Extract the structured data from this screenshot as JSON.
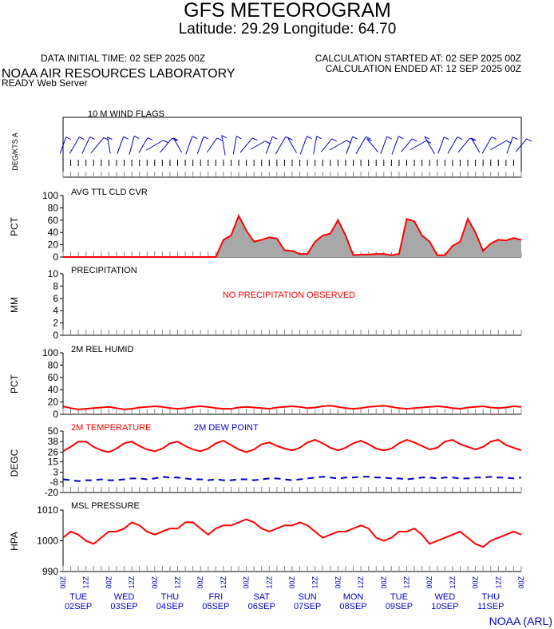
{
  "header": {
    "title": "GFS METEOROGRAM",
    "subtitle": "Latitude: 29.29 Longitude:  64.70",
    "data_initial_time": "DATA INITIAL TIME: 02 SEP 2025 00Z",
    "calc_started": "CALCULATION STARTED AT: 02 SEP 2025 00Z",
    "calc_ended": "CALCULATION ENDED AT: 12 SEP 2025 00Z",
    "lab": "NOAA AIR RESOURCES LABORATORY",
    "server": "READY Web Server",
    "credit": "NOAA (ARL)"
  },
  "colors": {
    "red": "#ff0000",
    "blue": "#0000cc",
    "fill": "#a8a8a8",
    "black": "#000000"
  },
  "x_axis": {
    "hour_labels": [
      "00Z",
      "12Z",
      "00Z",
      "12Z",
      "00Z",
      "12Z",
      "00Z",
      "12Z",
      "00Z",
      "12Z",
      "00Z",
      "12Z",
      "00Z",
      "12Z",
      "00Z",
      "12Z",
      "00Z",
      "12Z",
      "00Z",
      "12Z",
      "00Z"
    ],
    "days": [
      {
        "dow": "TUE",
        "date": "02SEP"
      },
      {
        "dow": "WED",
        "date": "03SEP"
      },
      {
        "dow": "THU",
        "date": "04SEP"
      },
      {
        "dow": "FRI",
        "date": "05SEP"
      },
      {
        "dow": "SAT",
        "date": "06SEP"
      },
      {
        "dow": "SUN",
        "date": "07SEP"
      },
      {
        "dow": "MON",
        "date": "08SEP"
      },
      {
        "dow": "TUE",
        "date": "09SEP"
      },
      {
        "dow": "WED",
        "date": "10SEP"
      },
      {
        "dow": "THU",
        "date": "11SEP"
      }
    ]
  },
  "chart_data": [
    {
      "type": "wind_barbs",
      "title": "10 M  WIND FLAGS",
      "ylabel": "DEG/KTS  A",
      "x_hours": [
        0,
        6,
        12,
        18,
        24,
        30,
        36,
        42,
        48,
        54,
        60,
        66,
        72,
        78,
        84,
        90,
        96,
        102,
        108,
        114,
        120,
        126,
        132,
        138,
        144,
        150,
        156,
        162,
        168,
        174,
        180,
        186,
        192,
        198,
        204,
        210,
        216,
        222,
        228,
        234,
        240
      ],
      "direction_deg": [
        20,
        30,
        25,
        40,
        350,
        20,
        15,
        30,
        60,
        40,
        330,
        20,
        20,
        35,
        350,
        10,
        40,
        60,
        20,
        30,
        330,
        20,
        10,
        40,
        60,
        20,
        30,
        320,
        20,
        20,
        40,
        60,
        330,
        20,
        30,
        40,
        330,
        30,
        60,
        20,
        40
      ],
      "speed_kts": [
        4,
        6,
        5,
        7,
        3,
        5,
        6,
        4,
        7,
        5,
        3,
        6,
        5,
        4,
        7,
        5,
        6,
        3,
        5,
        7,
        4,
        6,
        5,
        3,
        6,
        5,
        7,
        4,
        5,
        6,
        3,
        5,
        7,
        4,
        6,
        5,
        3,
        6,
        5,
        4,
        3
      ]
    },
    {
      "type": "area",
      "title": "AVG TTL CLD CVR",
      "ylabel": "PCT",
      "ylim": [
        0,
        100
      ],
      "yticks": [
        0,
        20,
        40,
        60,
        80,
        100
      ],
      "x_hours": [
        0,
        120,
        126,
        132,
        138,
        144,
        150,
        156,
        162,
        168,
        174,
        180,
        186,
        192,
        198,
        204,
        210,
        216,
        222,
        228,
        234,
        240,
        246,
        252,
        258,
        264,
        270,
        276,
        282,
        288,
        294,
        300,
        306,
        312,
        318,
        324,
        330,
        336,
        342,
        348,
        354,
        360
      ],
      "values": [
        0,
        0,
        28,
        35,
        67,
        43,
        25,
        28,
        32,
        30,
        11,
        10,
        5,
        5,
        25,
        35,
        38,
        60,
        35,
        3,
        4,
        4,
        5,
        5,
        3,
        5,
        62,
        58,
        35,
        25,
        3,
        3,
        18,
        25,
        62,
        40,
        10,
        22,
        28,
        27,
        31,
        28
      ]
    },
    {
      "type": "line",
      "title": "PRECIPITATION",
      "ylabel": "MM",
      "ylim": [
        0,
        10
      ],
      "yticks": [
        0,
        2,
        4,
        6,
        8,
        10
      ],
      "note": "NO PRECIPITATION OBSERVED",
      "values": []
    },
    {
      "type": "line",
      "title": "2M REL HUMID",
      "ylabel": "PCT",
      "ylim": [
        0,
        100
      ],
      "yticks": [
        0,
        20,
        40,
        60,
        80,
        100
      ],
      "x_step_hours": 6,
      "values": [
        13,
        10,
        8,
        9,
        10,
        11,
        12,
        10,
        8,
        9,
        11,
        12,
        13,
        12,
        10,
        9,
        10,
        12,
        13,
        12,
        10,
        9,
        9,
        11,
        12,
        11,
        10,
        9,
        11,
        12,
        13,
        12,
        10,
        11,
        13,
        14,
        12,
        10,
        9,
        10,
        12,
        13,
        14,
        12,
        10,
        9,
        10,
        11,
        12,
        13,
        12,
        10,
        9,
        11,
        12,
        13,
        11,
        10,
        11,
        13,
        12
      ]
    },
    {
      "type": "line",
      "title": "2M TEMPERATURE",
      "ylabel": "DEGC",
      "ylim": [
        -20,
        50
      ],
      "yticks": [
        -20,
        -8,
        3,
        15,
        26,
        38,
        50
      ],
      "series": [
        {
          "name": "2M TEMPERATURE",
          "color": "#ff0000",
          "style": "solid",
          "x_step_hours": 6,
          "values": [
            27,
            32,
            38,
            38,
            32,
            28,
            26,
            30,
            36,
            38,
            33,
            29,
            27,
            30,
            36,
            38,
            33,
            29,
            27,
            30,
            36,
            39,
            34,
            29,
            26,
            29,
            35,
            37,
            33,
            30,
            28,
            31,
            37,
            40,
            36,
            31,
            28,
            31,
            36,
            39,
            35,
            30,
            28,
            30,
            36,
            40,
            37,
            33,
            29,
            31,
            38,
            40,
            35,
            32,
            29,
            32,
            38,
            40,
            34,
            31,
            28
          ]
        },
        {
          "name": "2M   DEW POINT",
          "color": "#0000cc",
          "style": "dashed",
          "x_step_hours": 6,
          "values": [
            -5,
            -6,
            -7,
            -6,
            -6,
            -5,
            -6,
            -6,
            -5,
            -4,
            -4,
            -5,
            -4,
            -2,
            -3,
            -3,
            -4,
            -5,
            -5,
            -6,
            -5,
            -6,
            -6,
            -5,
            -5,
            -6,
            -5,
            -4,
            -4,
            -5,
            -6,
            -5,
            -4,
            -3,
            -2,
            -3,
            -4,
            -3,
            -3,
            -2,
            -2,
            -3,
            -3,
            -4,
            -4,
            -5,
            -4,
            -3,
            -3,
            -4,
            -3,
            -3,
            -4,
            -4,
            -3,
            -3,
            -2,
            -3,
            -3,
            -4,
            -3
          ]
        }
      ]
    },
    {
      "type": "line",
      "title": "MSL PRESSURE",
      "ylabel": "HPA",
      "ylim": [
        990,
        1010
      ],
      "yticks": [
        990,
        1000,
        1010
      ],
      "x_step_hours": 6,
      "values": [
        1001,
        1003,
        1002,
        1000,
        999,
        1001,
        1003,
        1003,
        1004,
        1006,
        1005,
        1003,
        1002,
        1003,
        1004,
        1004,
        1006,
        1006,
        1004,
        1002,
        1004,
        1005,
        1005,
        1006,
        1007,
        1006,
        1004,
        1003,
        1004,
        1005,
        1005,
        1006,
        1005,
        1003,
        1001,
        1002,
        1003,
        1003,
        1004,
        1005,
        1004,
        1001,
        1000,
        1001,
        1003,
        1003,
        1004,
        1002,
        999,
        1000,
        1001,
        1002,
        1003,
        1001,
        999,
        998,
        1000,
        1001,
        1002,
        1003,
        1002
      ]
    }
  ]
}
